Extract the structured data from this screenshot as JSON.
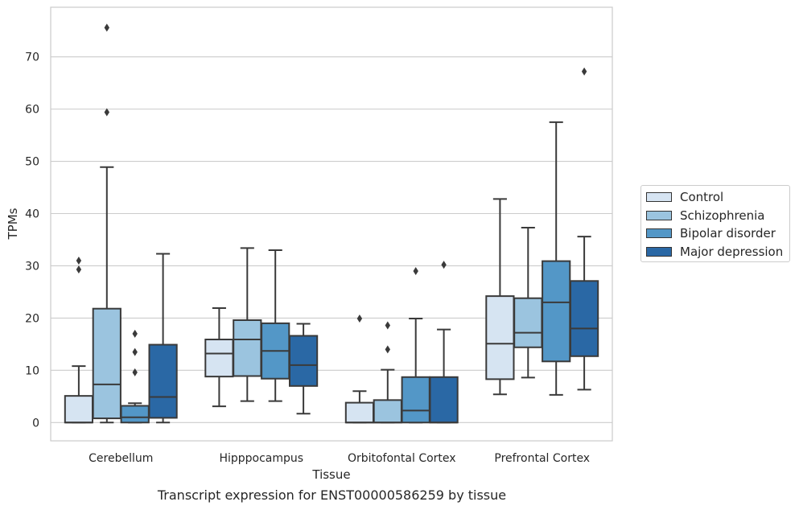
{
  "chart_data": {
    "type": "box",
    "title": "",
    "xlabel": "Tissue",
    "ylabel": "TPMs",
    "caption": "Transcript expression for ENST00000586259 by tissue",
    "ylim": [
      -3.5,
      79.5
    ],
    "yticks": [
      0,
      10,
      20,
      30,
      40,
      50,
      60,
      70
    ],
    "grid": "horizontal",
    "legend_position": "right",
    "categories": [
      "Cerebellum",
      "Hipppocampus",
      "Orbitofontal Cortex",
      "Prefrontal Cortex"
    ],
    "series": [
      {
        "name": "Control",
        "color": "#d6e4f2",
        "boxes": [
          {
            "q1": 0,
            "median": 0,
            "q3": 5.1,
            "whisker_low": 0,
            "whisker_high": 10.8,
            "outliers": [
              29.3,
              31.0
            ]
          },
          {
            "q1": 8.8,
            "median": 13.2,
            "q3": 15.9,
            "whisker_low": 3.1,
            "whisker_high": 21.9,
            "outliers": []
          },
          {
            "q1": 0,
            "median": 0,
            "q3": 3.8,
            "whisker_low": 0,
            "whisker_high": 6.0,
            "outliers": [
              19.9
            ]
          },
          {
            "q1": 8.3,
            "median": 15.1,
            "q3": 24.2,
            "whisker_low": 5.4,
            "whisker_high": 42.8,
            "outliers": []
          }
        ]
      },
      {
        "name": "Schizophrenia",
        "color": "#9bc4df",
        "boxes": [
          {
            "q1": 0.8,
            "median": 7.3,
            "q3": 21.8,
            "whisker_low": 0,
            "whisker_high": 48.9,
            "outliers": [
              59.4,
              75.6
            ]
          },
          {
            "q1": 8.9,
            "median": 15.9,
            "q3": 19.6,
            "whisker_low": 4.1,
            "whisker_high": 33.4,
            "outliers": []
          },
          {
            "q1": 0,
            "median": 0,
            "q3": 4.3,
            "whisker_low": 0,
            "whisker_high": 10.1,
            "outliers": [
              14.0,
              18.6
            ]
          },
          {
            "q1": 14.4,
            "median": 17.2,
            "q3": 23.8,
            "whisker_low": 8.6,
            "whisker_high": 37.3,
            "outliers": []
          }
        ]
      },
      {
        "name": "Bipolar disorder",
        "color": "#5397c7",
        "boxes": [
          {
            "q1": 0,
            "median": 1.0,
            "q3": 3.2,
            "whisker_low": 0,
            "whisker_high": 3.7,
            "outliers": [
              9.6,
              13.5,
              17.0
            ]
          },
          {
            "q1": 8.4,
            "median": 13.7,
            "q3": 19.0,
            "whisker_low": 4.1,
            "whisker_high": 33.0,
            "outliers": []
          },
          {
            "q1": 0,
            "median": 2.3,
            "q3": 8.7,
            "whisker_low": 0,
            "whisker_high": 19.9,
            "outliers": [
              29.0
            ]
          },
          {
            "q1": 11.7,
            "median": 23.0,
            "q3": 30.9,
            "whisker_low": 5.3,
            "whisker_high": 57.5,
            "outliers": []
          }
        ]
      },
      {
        "name": "Major depression",
        "color": "#2a68a5",
        "boxes": [
          {
            "q1": 0.9,
            "median": 4.9,
            "q3": 14.9,
            "whisker_low": 0,
            "whisker_high": 32.3,
            "outliers": []
          },
          {
            "q1": 7.0,
            "median": 11.0,
            "q3": 16.6,
            "whisker_low": 1.7,
            "whisker_high": 18.9,
            "outliers": []
          },
          {
            "q1": 0,
            "median": 0,
            "q3": 8.7,
            "whisker_low": 0,
            "whisker_high": 17.8,
            "outliers": [
              30.2
            ]
          },
          {
            "q1": 12.7,
            "median": 18.0,
            "q3": 27.1,
            "whisker_low": 6.3,
            "whisker_high": 35.6,
            "outliers": [
              67.2
            ]
          }
        ]
      }
    ]
  }
}
